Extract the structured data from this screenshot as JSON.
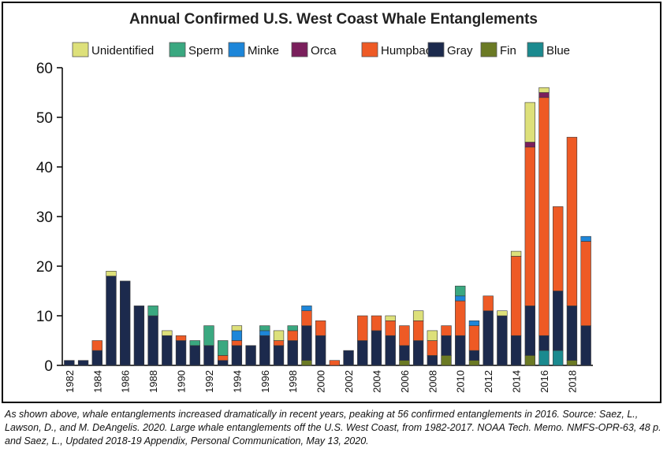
{
  "title": "Annual Confirmed U.S. West Coast Whale Entanglements",
  "caption": "As shown above, whale entanglements increased dramatically in recent years, peaking at 56 confirmed entanglements in 2016. Source: Saez, L., Lawson, D., and M. DeAngelis. 2020. Large whale entanglements off the U.S. West Coast, from 1982-2017. NOAA Tech. Memo. NMFS-OPR-63, 48 p. and Saez, L., Updated 2018-19 Appendix, Personal Communication, May 13, 2020.",
  "chart_data": {
    "type": "bar",
    "stacked": true,
    "title": "Annual Confirmed U.S. West Coast Whale Entanglements",
    "xlabel": "",
    "ylabel": "",
    "ylim": [
      0,
      60
    ],
    "yticks": [
      0,
      10,
      20,
      30,
      40,
      50,
      60
    ],
    "grid": false,
    "legend_position": "top",
    "categories": [
      "1982",
      "1983",
      "1984",
      "1985",
      "1986",
      "1987",
      "1988",
      "1989",
      "1990",
      "1991",
      "1992",
      "1993",
      "1994",
      "1995",
      "1996",
      "1997",
      "1998",
      "1999",
      "2000",
      "2001",
      "2002",
      "2003",
      "2004",
      "2005",
      "2006",
      "2007",
      "2008",
      "2009",
      "2010",
      "2011",
      "2012",
      "2013",
      "2014",
      "2015",
      "2016",
      "2017",
      "2018",
      "2019"
    ],
    "xtick_labels": [
      "1982",
      "",
      "1984",
      "",
      "1986",
      "",
      "1988",
      "",
      "1990",
      "",
      "1992",
      "",
      "1994",
      "",
      "1996",
      "",
      "1998",
      "",
      "2000",
      "",
      "2002",
      "",
      "2004",
      "",
      "2006",
      "",
      "2008",
      "",
      "2010",
      "",
      "2012",
      "",
      "2014",
      "",
      "2016",
      "",
      "2018",
      ""
    ],
    "legend_order": [
      "Unidentified",
      "Sperm",
      "Minke",
      "Orca",
      "Humpback",
      "Gray",
      "Fin",
      "Blue"
    ],
    "series": [
      {
        "name": "Blue",
        "color": "#1b8a8f",
        "values": [
          0,
          0,
          0,
          0,
          0,
          0,
          0,
          0,
          0,
          0,
          0,
          0,
          0,
          0,
          0,
          0,
          0,
          0,
          0,
          0,
          0,
          0,
          0,
          0,
          0,
          0,
          0,
          0,
          0,
          0,
          0,
          0,
          0,
          0,
          3,
          3,
          0,
          0
        ]
      },
      {
        "name": "Fin",
        "color": "#6b7a24",
        "values": [
          0,
          0,
          0,
          0,
          0,
          0,
          0,
          0,
          0,
          0,
          0,
          0,
          0,
          0,
          0,
          0,
          0,
          1,
          0,
          0,
          0,
          0,
          0,
          0,
          1,
          0,
          0,
          2,
          0,
          1,
          0,
          0,
          0,
          2,
          0,
          0,
          1,
          0
        ]
      },
      {
        "name": "Gray",
        "color": "#1c2a4d",
        "values": [
          1,
          1,
          3,
          18,
          17,
          12,
          10,
          6,
          5,
          4,
          4,
          1,
          4,
          4,
          6,
          4,
          5,
          7,
          6,
          0,
          3,
          5,
          7,
          6,
          3,
          5,
          2,
          4,
          6,
          2,
          11,
          10,
          6,
          10,
          3,
          12,
          11,
          8
        ]
      },
      {
        "name": "Humpback",
        "color": "#ee5a25",
        "values": [
          0,
          0,
          2,
          0,
          0,
          0,
          0,
          0,
          1,
          0,
          0,
          1,
          1,
          0,
          0,
          1,
          2,
          3,
          3,
          1,
          0,
          5,
          3,
          3,
          4,
          4,
          3,
          2,
          7,
          5,
          3,
          0,
          16,
          32,
          48,
          17,
          34,
          17
        ]
      },
      {
        "name": "Orca",
        "color": "#7a1f5c",
        "values": [
          0,
          0,
          0,
          0,
          0,
          0,
          0,
          0,
          0,
          0,
          0,
          0,
          0,
          0,
          0,
          0,
          0,
          0,
          0,
          0,
          0,
          0,
          0,
          0,
          0,
          0,
          0,
          0,
          0,
          0,
          0,
          0,
          0,
          1,
          1,
          0,
          0,
          0
        ]
      },
      {
        "name": "Minke",
        "color": "#1d86d9",
        "values": [
          0,
          0,
          0,
          0,
          0,
          0,
          0,
          0,
          0,
          0,
          0,
          0,
          2,
          0,
          1,
          0,
          0,
          1,
          0,
          0,
          0,
          0,
          0,
          0,
          0,
          0,
          0,
          0,
          1,
          1,
          0,
          0,
          0,
          0,
          0,
          0,
          0,
          1
        ]
      },
      {
        "name": "Sperm",
        "color": "#3aa880",
        "values": [
          0,
          0,
          0,
          0,
          0,
          0,
          2,
          0,
          0,
          1,
          4,
          3,
          0,
          0,
          1,
          0,
          1,
          0,
          0,
          0,
          0,
          0,
          0,
          0,
          0,
          0,
          0,
          0,
          2,
          0,
          0,
          0,
          0,
          0,
          0,
          0,
          0,
          0
        ]
      },
      {
        "name": "Unidentified",
        "color": "#dde07a",
        "values": [
          0,
          0,
          0,
          1,
          0,
          0,
          0,
          1,
          0,
          0,
          0,
          0,
          1,
          0,
          0,
          2,
          0,
          0,
          0,
          0,
          0,
          0,
          0,
          1,
          0,
          2,
          2,
          0,
          0,
          0,
          0,
          1,
          1,
          8,
          1,
          0,
          0,
          0
        ]
      }
    ]
  }
}
